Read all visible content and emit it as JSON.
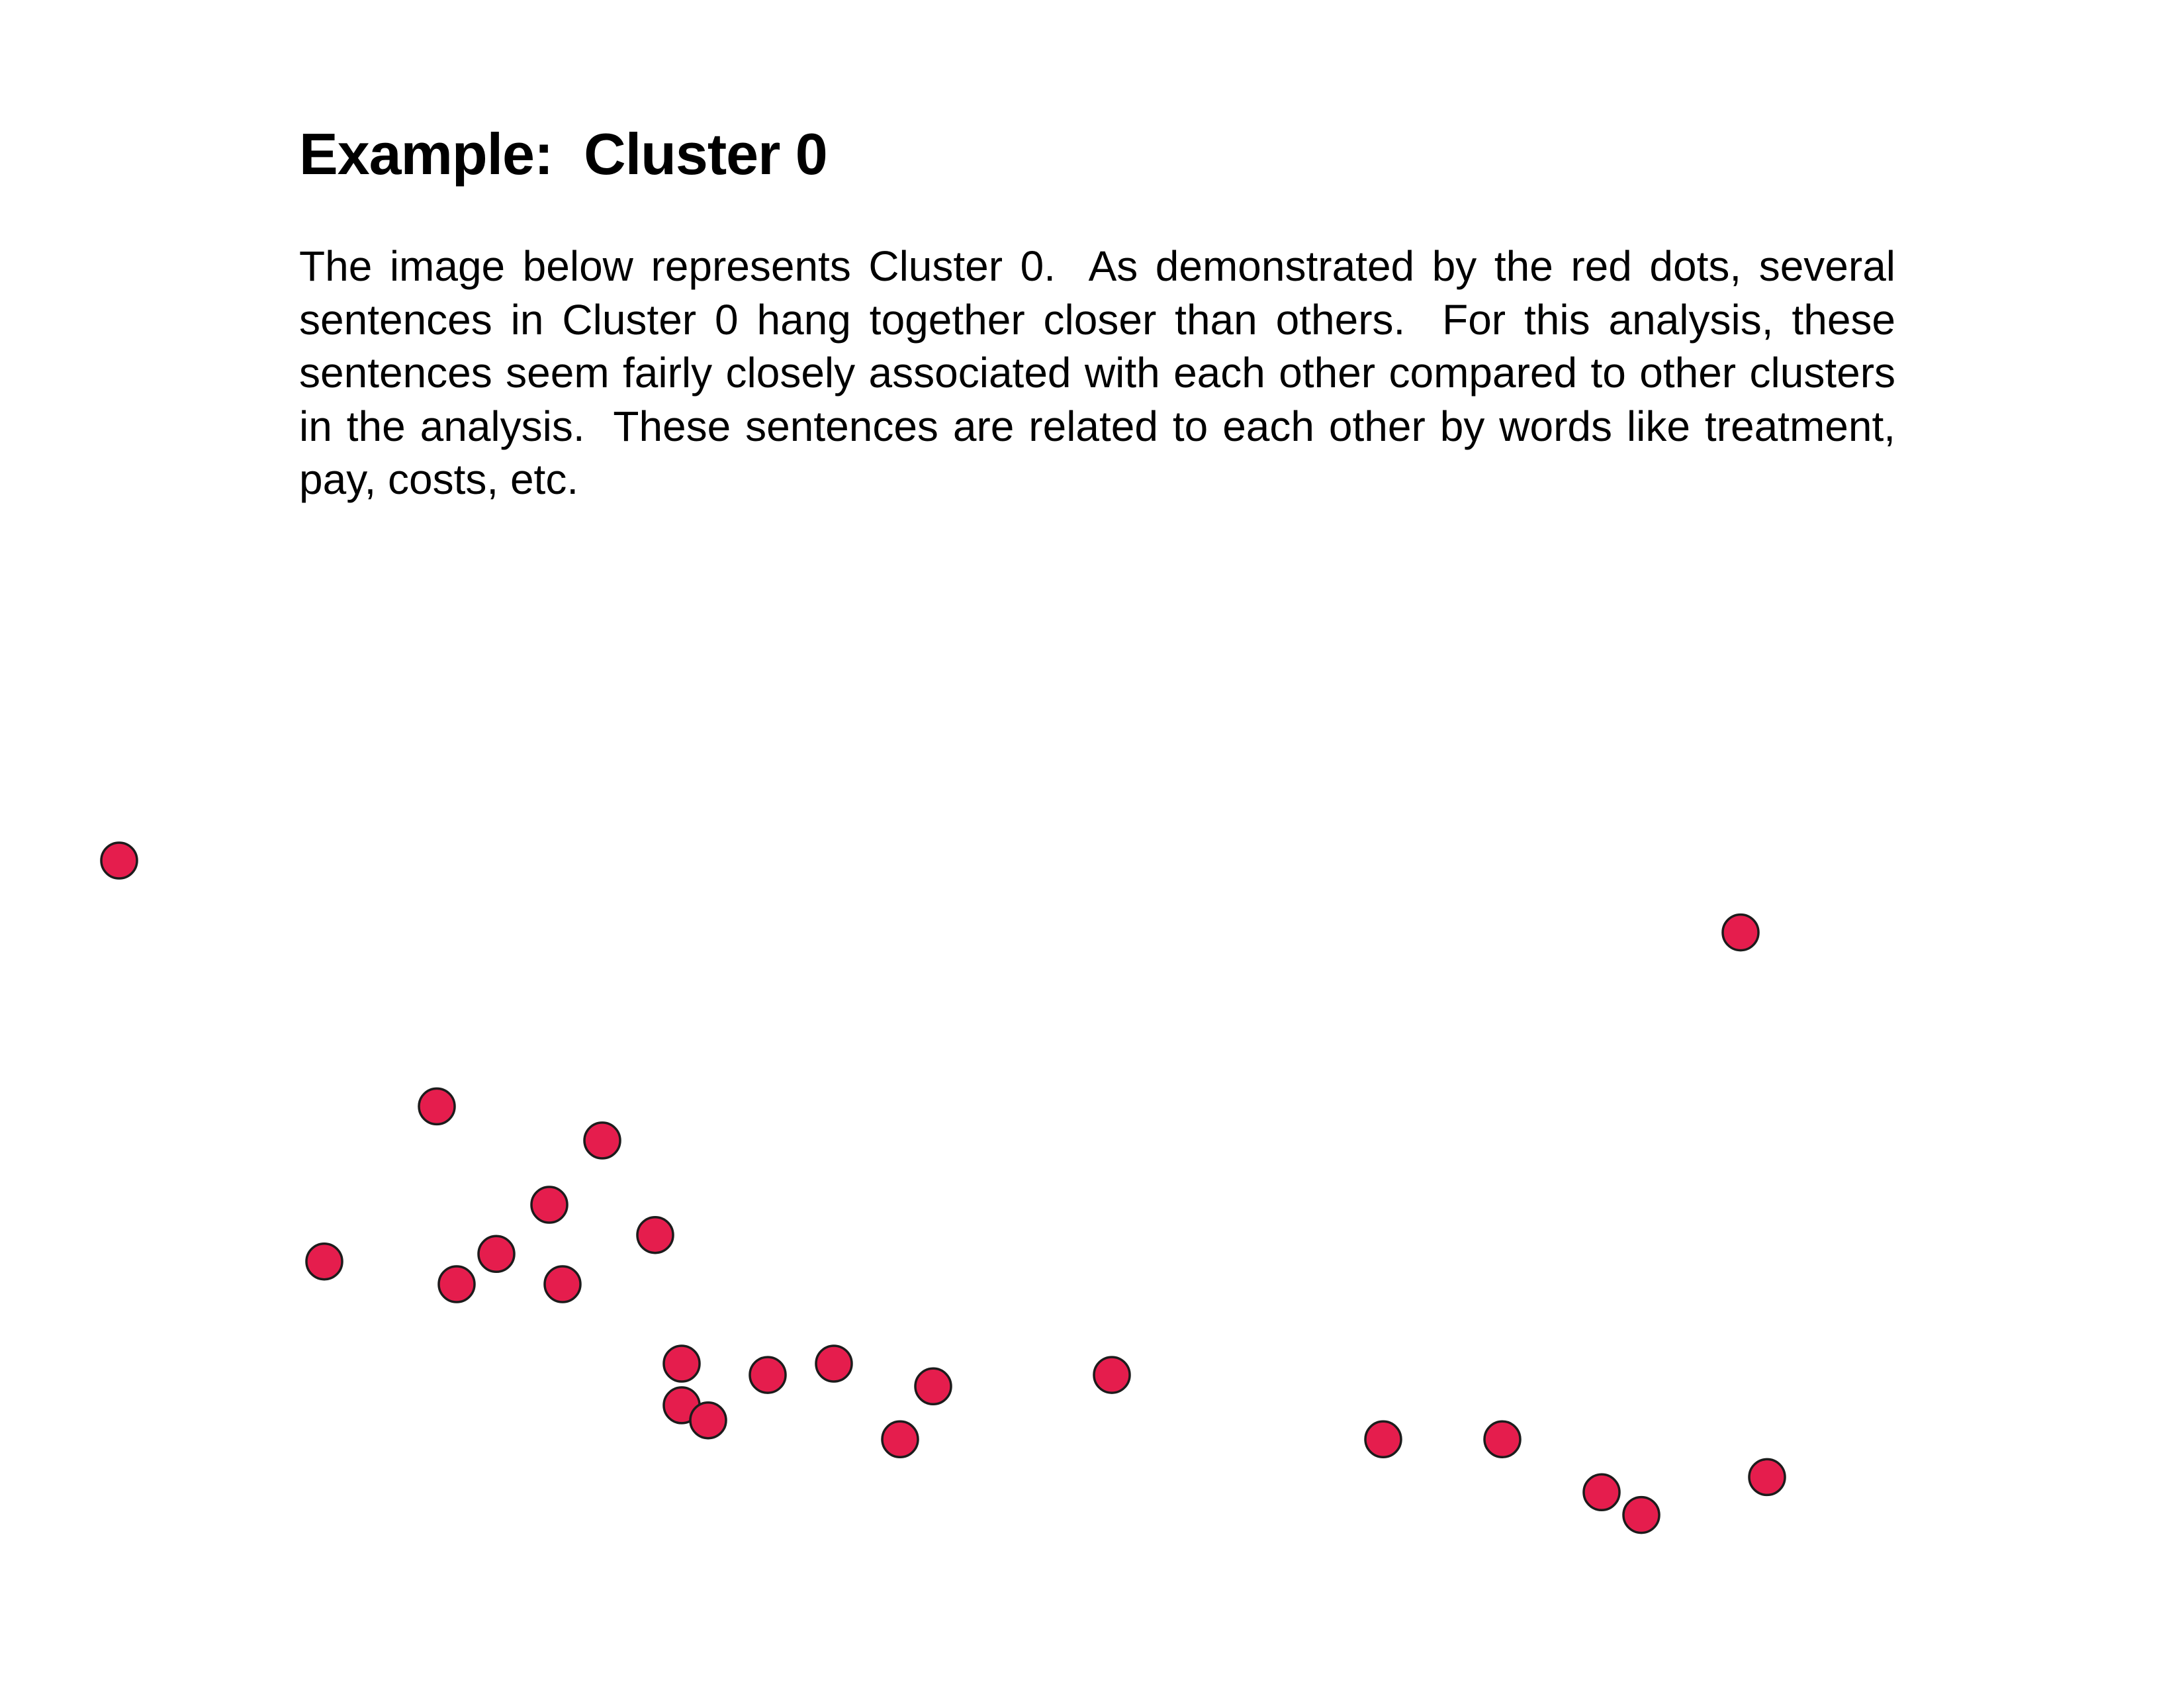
{
  "page": {
    "title": "Example:  Cluster 0",
    "body": "The image below represents Cluster 0.  As demonstrated by the red dots, several sentences in Cluster 0 hang together closer than others.  For this analysis, these sentences seem fairly closely associated with each other compared to other clusters in the analysis.  These sentences are related to each other by words like treatment, pay, costs, etc."
  },
  "colors": {
    "dot_fill": "#e51d4d",
    "dot_stroke": "#1c1c1c",
    "text": "#000000",
    "background": "#ffffff"
  },
  "chart_data": {
    "type": "scatter",
    "title": "",
    "xlabel": "",
    "ylabel": "",
    "grid": false,
    "axes_visible": false,
    "x": [
      0.18,
      2.63,
      0.66,
      0.91,
      0.83,
      0.99,
      0.75,
      0.49,
      0.69,
      0.85,
      1.03,
      1.26,
      1.16,
      1.68,
      1.41,
      1.03,
      1.07,
      2.27,
      2.09,
      2.67,
      1.36,
      2.42,
      2.48
    ],
    "y": [
      1.23,
      1.42,
      1.88,
      1.97,
      2.14,
      2.22,
      2.27,
      2.29,
      2.35,
      2.35,
      2.56,
      2.56,
      2.59,
      2.59,
      2.62,
      2.67,
      2.71,
      2.76,
      2.76,
      2.86,
      2.76,
      2.9,
      2.96
    ],
    "xlim": [
      0,
      3.3
    ],
    "ylim": [
      3.05,
      0.95
    ]
  }
}
